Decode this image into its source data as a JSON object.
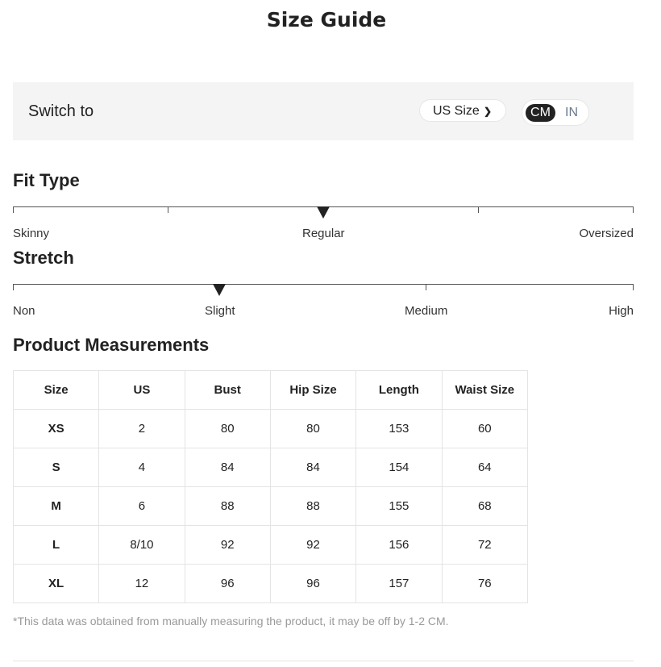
{
  "title": "Size Guide",
  "switch": {
    "label": "Switch to",
    "size_system": "US Size",
    "units": [
      "CM",
      "IN"
    ],
    "selected_unit": "CM"
  },
  "fit_type": {
    "heading": "Fit Type",
    "labels": [
      "Skinny",
      "Regular",
      "Oversized"
    ],
    "value_fraction": 0.5
  },
  "stretch": {
    "heading": "Stretch",
    "labels": [
      "Non",
      "Slight",
      "Medium",
      "High"
    ],
    "value_fraction": 0.333
  },
  "measurements": {
    "heading": "Product Measurements",
    "columns": [
      "Size",
      "US",
      "Bust",
      "Hip Size",
      "Length",
      "Waist Size"
    ],
    "rows": [
      [
        "XS",
        "2",
        "80",
        "80",
        "153",
        "60"
      ],
      [
        "S",
        "4",
        "84",
        "84",
        "154",
        "64"
      ],
      [
        "M",
        "6",
        "88",
        "88",
        "155",
        "68"
      ],
      [
        "L",
        "8/10",
        "92",
        "92",
        "156",
        "72"
      ],
      [
        "XL",
        "12",
        "96",
        "96",
        "157",
        "76"
      ]
    ]
  },
  "note": "*This data was obtained from manually measuring the product, it may be off by 1-2 CM."
}
